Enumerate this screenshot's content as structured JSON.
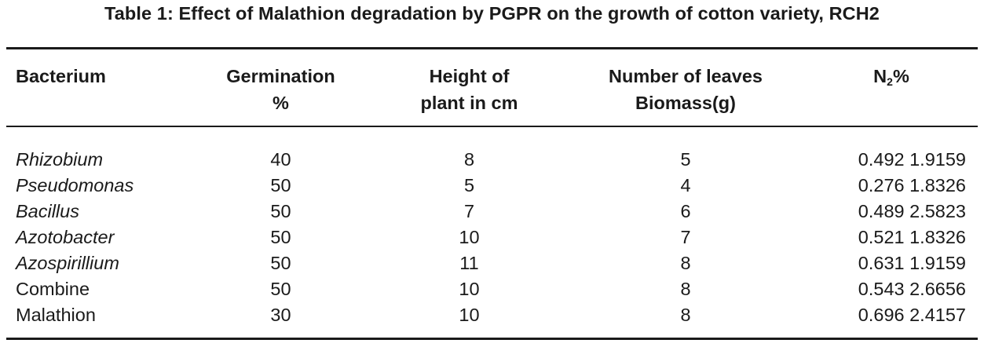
{
  "caption": "Table 1: Effect of Malathion degradation by PGPR on the growth of cotton variety, RCH2",
  "headers": {
    "bacterium": "Bacterium",
    "germination_line1": "Germination",
    "germination_line2": "%",
    "height_line1": "Height of",
    "height_line2": "plant in cm",
    "leaves_line1": "Number of leaves",
    "leaves_line2": "Biomass(g)",
    "n2_base": "N",
    "n2_sub": "2",
    "n2_suffix": "%"
  },
  "rows": [
    {
      "bacterium": "Rhizobium",
      "italic": true,
      "germination": "40",
      "height": "8",
      "leaves": "5",
      "n2": "0.492 1.9159"
    },
    {
      "bacterium": "Pseudomonas",
      "italic": true,
      "germination": "50",
      "height": "5",
      "leaves": "4",
      "n2": "0.276 1.8326"
    },
    {
      "bacterium": "Bacillus",
      "italic": true,
      "germination": "50",
      "height": "7",
      "leaves": "6",
      "n2": "0.489 2.5823"
    },
    {
      "bacterium": "Azotobacter",
      "italic": true,
      "germination": "50",
      "height": "10",
      "leaves": "7",
      "n2": "0.521 1.8326"
    },
    {
      "bacterium": "Azospirillium",
      "italic": true,
      "germination": "50",
      "height": "11",
      "leaves": "8",
      "n2": "0.631 1.9159"
    },
    {
      "bacterium": "Combine",
      "italic": false,
      "germination": "50",
      "height": "10",
      "leaves": "8",
      "n2": "0.543 2.6656"
    },
    {
      "bacterium": "Malathion",
      "italic": false,
      "germination": "30",
      "height": "10",
      "leaves": "8",
      "n2": "0.696 2.4157"
    }
  ]
}
